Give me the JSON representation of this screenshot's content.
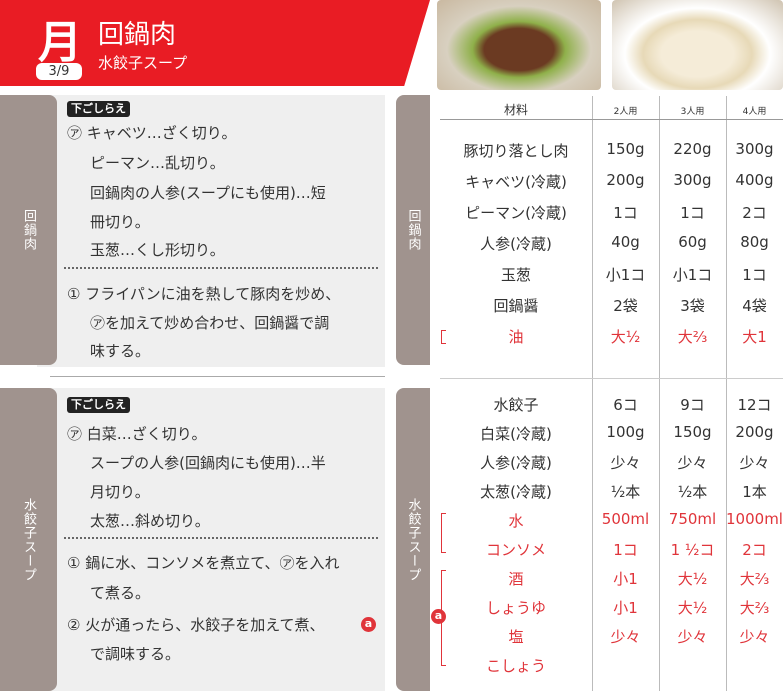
{
  "header": {
    "day": "月",
    "date": "3/9",
    "title": "回鍋肉",
    "subtitle": "水餃子スープ"
  },
  "sections": [
    {
      "tab": "回鍋肉",
      "prep_label": "下ごしらえ",
      "prep": [
        "㋐ キャベツ…ざく切り。",
        "ピーマン…乱切り。",
        "回鍋肉の人参(スープにも使用)…短",
        "冊切り。",
        "玉葱…くし形切り。"
      ],
      "steps": [
        "① フライパンに油を熱して豚肉を炒め、",
        "㋐を加えて炒め合わせ、回鍋醤で調",
        "味する。"
      ]
    },
    {
      "tab": "水餃子スープ",
      "prep_label": "下ごしらえ",
      "prep": [
        "㋐ 白菜…ざく切り。",
        "スープの人参(回鍋肉にも使用)…半",
        "月切り。",
        "太葱…斜め切り。"
      ],
      "steps": [
        "① 鍋に水、コンソメを煮立て、㋐を入れ",
        "て煮る。",
        "② 火が通ったら、水餃子を加えて煮、",
        "で調味する。"
      ],
      "step_badge": "a"
    }
  ],
  "table": {
    "headers": [
      "材料",
      "2人用",
      "3人用",
      "4人用"
    ],
    "section1": [
      [
        "豚切り落とし肉",
        "150g",
        "220g",
        "300g"
      ],
      [
        "キャベツ(冷蔵)",
        "200g",
        "300g",
        "400g"
      ],
      [
        "ピーマン(冷蔵)",
        "1コ",
        "1コ",
        "2コ"
      ],
      [
        "人参(冷蔵)",
        "40g",
        "60g",
        "80g"
      ],
      [
        "玉葱",
        "小1コ",
        "小1コ",
        "1コ"
      ],
      [
        "回鍋醤",
        "2袋",
        "3袋",
        "4袋"
      ],
      [
        "油",
        "大½",
        "大⅔",
        "大1"
      ]
    ],
    "section2": [
      [
        "水餃子",
        "6コ",
        "9コ",
        "12コ"
      ],
      [
        "白菜(冷蔵)",
        "100g",
        "150g",
        "200g"
      ],
      [
        "人参(冷蔵)",
        "少々",
        "少々",
        "少々"
      ],
      [
        "太葱(冷蔵)",
        "½本",
        "½本",
        "1本"
      ],
      [
        "水",
        "500ml",
        "750ml",
        "1000ml"
      ],
      [
        "コンソメ",
        "1コ",
        "1 ½コ",
        "2コ"
      ],
      [
        "酒",
        "小1",
        "大½",
        "大⅔"
      ],
      [
        "しょうゆ",
        "小1",
        "大½",
        "大⅔"
      ],
      [
        "塩",
        "少々",
        "少々",
        "少々"
      ],
      [
        "こしょう",
        "",
        "",
        ""
      ]
    ],
    "group_badge": "a"
  },
  "colors": {
    "accent": "#e91c24",
    "tab": "#a0938e",
    "seasoning": "#e0343a"
  }
}
